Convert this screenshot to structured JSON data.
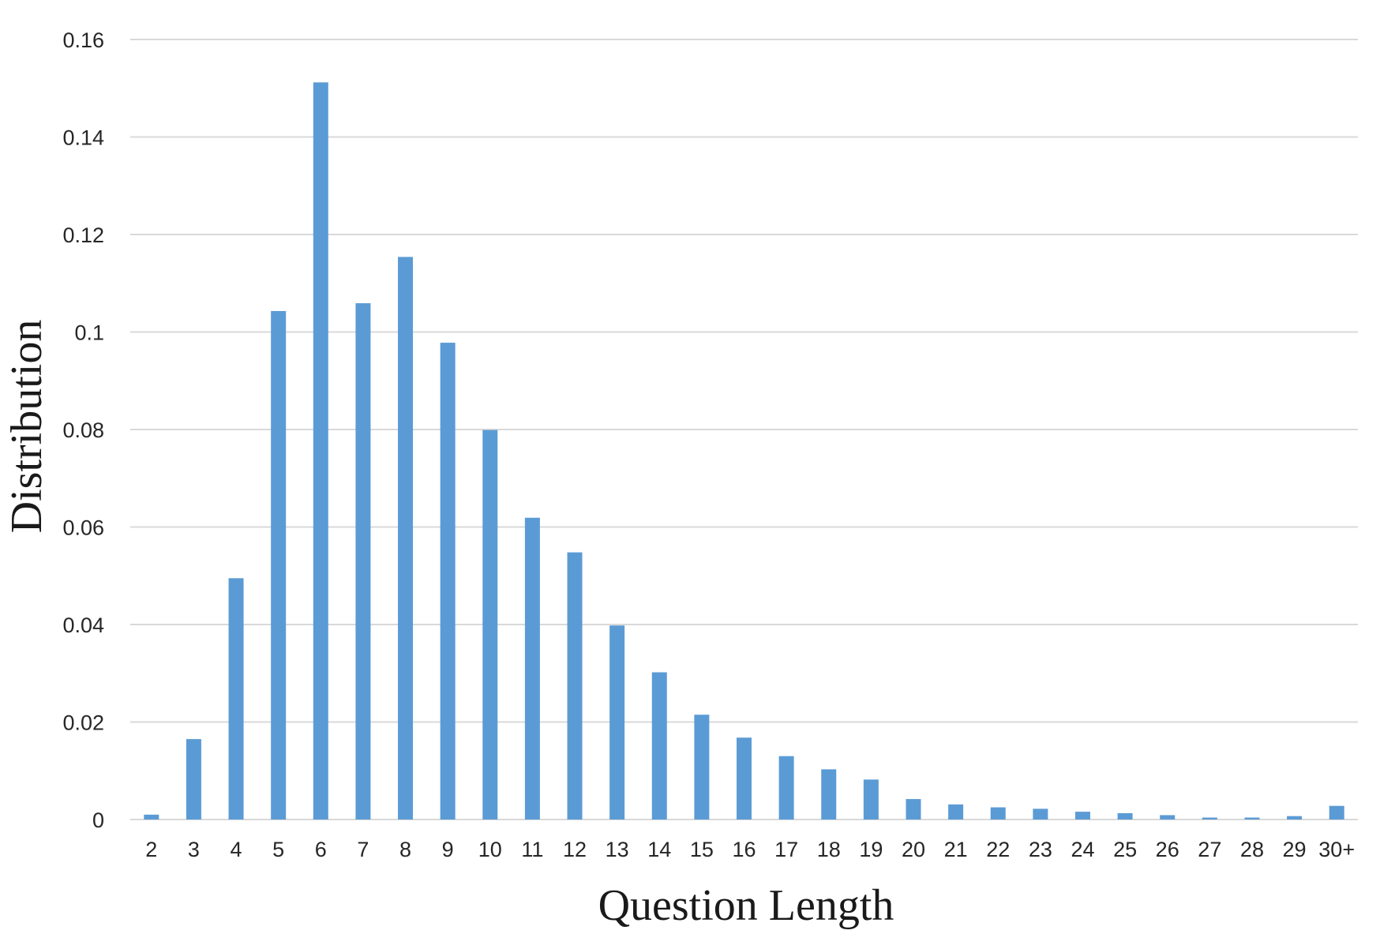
{
  "chart_data": {
    "type": "bar",
    "title": "",
    "xlabel": "Question Length",
    "ylabel": "Distribution",
    "categories": [
      "2",
      "3",
      "4",
      "5",
      "6",
      "7",
      "8",
      "9",
      "10",
      "11",
      "12",
      "13",
      "14",
      "15",
      "16",
      "17",
      "18",
      "19",
      "20",
      "21",
      "22",
      "23",
      "24",
      "25",
      "26",
      "27",
      "28",
      "29",
      "30+"
    ],
    "values": [
      0.001,
      0.0165,
      0.0495,
      0.1043,
      0.1512,
      0.1059,
      0.1154,
      0.0978,
      0.0799,
      0.0619,
      0.0548,
      0.0398,
      0.0302,
      0.0215,
      0.0168,
      0.013,
      0.0103,
      0.0082,
      0.0042,
      0.0031,
      0.0025,
      0.0022,
      0.0016,
      0.0013,
      0.0009,
      0.0004,
      0.0004,
      0.0007,
      0.0028
    ],
    "ylim": [
      0,
      0.16
    ],
    "yticks": [
      0,
      0.02,
      0.04,
      0.06,
      0.08,
      0.1,
      0.12,
      0.14,
      0.16
    ],
    "ytick_labels": [
      "0",
      "0.02",
      "0.04",
      "0.06",
      "0.08",
      "0.1",
      "0.12",
      "0.14",
      "0.16"
    ],
    "grid": true,
    "legend": "none",
    "colors": {
      "bar": "#5b9bd5",
      "grid": "#d9d9d9",
      "text": "#262626"
    }
  }
}
